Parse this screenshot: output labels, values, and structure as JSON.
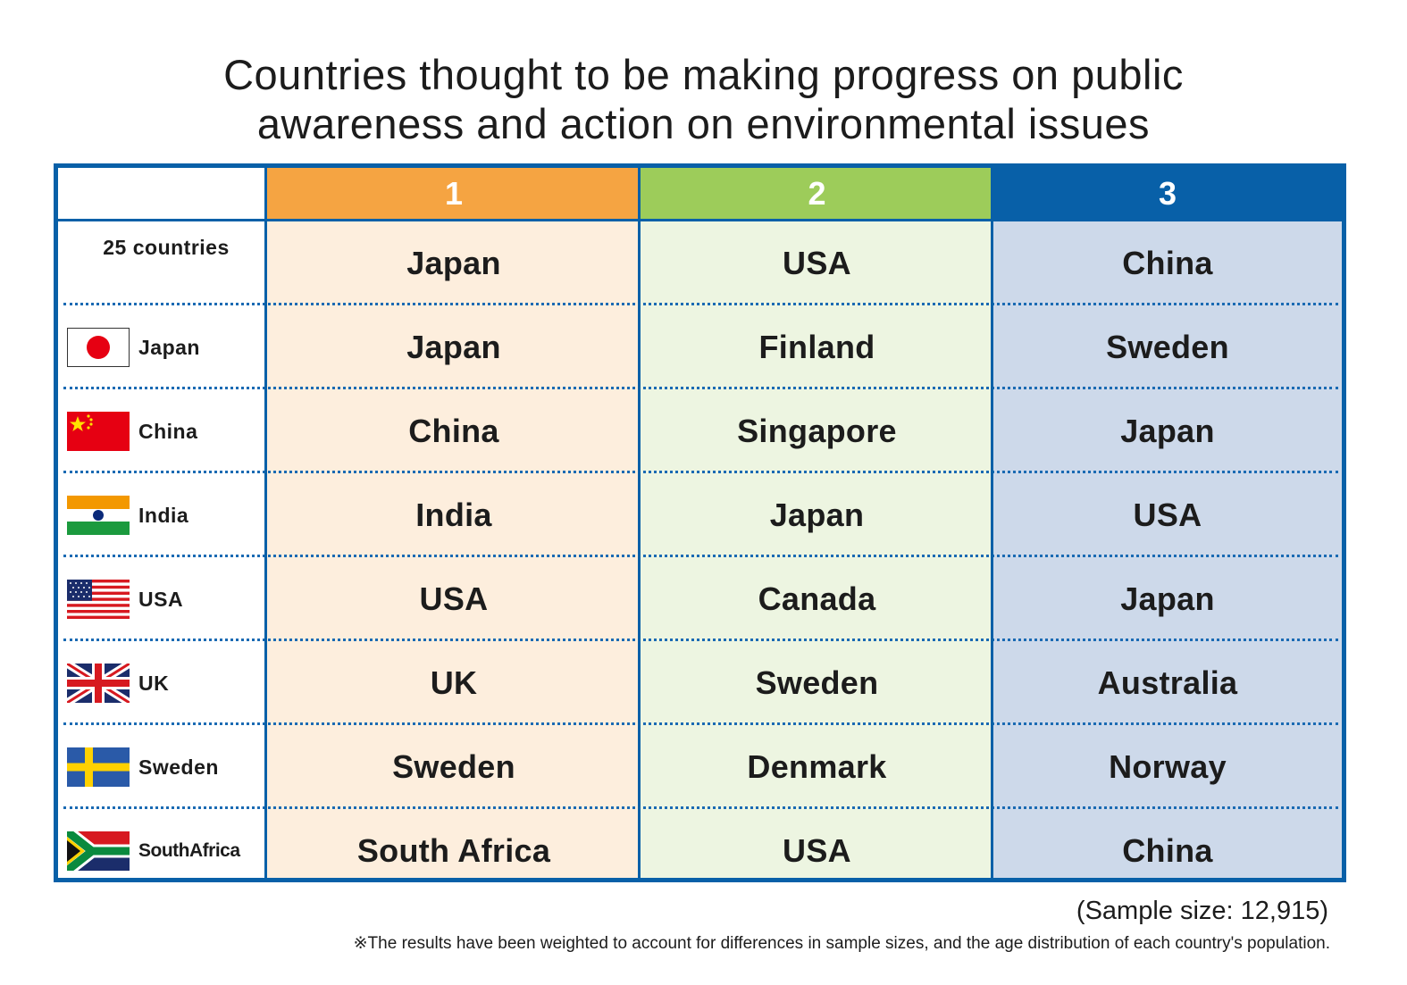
{
  "title_lines": [
    "Countries thought to be making progress on public",
    "awareness and action on environmental issues"
  ],
  "colors": {
    "border": "#0860a8",
    "rank1_header": "#f5a442",
    "rank2_header": "#9dcc5a",
    "rank3_header": "#0860a8",
    "rank1_fill": "#fdeedd",
    "rank2_fill": "#edf5e1",
    "rank3_fill": "#cdd9ea"
  },
  "chart_data": {
    "type": "table",
    "title": "Countries thought to be making progress on public awareness and action on environmental issues",
    "columns": [
      "1",
      "2",
      "3"
    ],
    "rows": [
      {
        "label": "25 countries",
        "flag": "",
        "values": [
          "Japan",
          "USA",
          "China"
        ]
      },
      {
        "label": "Japan",
        "flag": "japan-flag-icon",
        "values": [
          "Japan",
          "Finland",
          "Sweden"
        ]
      },
      {
        "label": "China",
        "flag": "china-flag-icon",
        "values": [
          "China",
          "Singapore",
          "Japan"
        ]
      },
      {
        "label": "India",
        "flag": "india-flag-icon",
        "values": [
          "India",
          "Japan",
          "USA"
        ]
      },
      {
        "label": "USA",
        "flag": "usa-flag-icon",
        "values": [
          "USA",
          "Canada",
          "Japan"
        ]
      },
      {
        "label": "UK",
        "flag": "uk-flag-icon",
        "values": [
          "UK",
          "Sweden",
          "Australia"
        ]
      },
      {
        "label": "Sweden",
        "flag": "sweden-flag-icon",
        "values": [
          "Sweden",
          "Denmark",
          "Norway"
        ]
      },
      {
        "label": "SouthAfrica",
        "flag": "south-africa-flag-icon",
        "values": [
          "South Africa",
          "USA",
          "China"
        ]
      }
    ]
  },
  "footer": {
    "sample_size": "(Sample size: 12,915)",
    "note": "※The results have been weighted to account for differences in sample sizes, and the age distribution of each country's population."
  }
}
